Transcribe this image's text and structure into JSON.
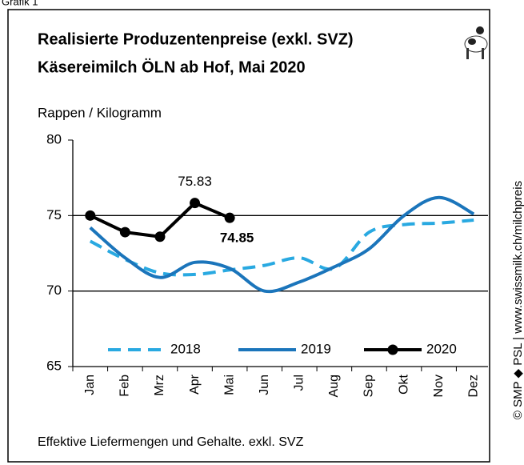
{
  "chart_data": {
    "type": "line",
    "header_label": "Grafik 1",
    "title": "Realisierte Produzentenpreise (exkl. SVZ)",
    "subtitle": "Käsereimilch ÖLN ab Hof, Mai 2020",
    "y_label": "Rappen / Kilogramm",
    "footnote": "Effektive Liefermengen und Gehalte. exkl. SVZ",
    "source": "© SMP ◆ PSL | www.swissmilk.ch/milchpreis",
    "categories": [
      "Jan",
      "Feb",
      "Mrz",
      "Apr",
      "Mai",
      "Jun",
      "Jul",
      "Aug",
      "Sep",
      "Okt",
      "Nov",
      "Dez"
    ],
    "ylim": [
      65,
      80
    ],
    "yticks": [
      65,
      70,
      75,
      80
    ],
    "grid_values": [
      70,
      75
    ],
    "legend": "bottom",
    "series": [
      {
        "name": "2018",
        "color": "#29a9e1",
        "style": "dashed",
        "values": [
          73.3,
          72.1,
          71.2,
          71.1,
          71.4,
          71.7,
          72.2,
          71.5,
          73.9,
          74.4,
          74.5,
          74.7
        ]
      },
      {
        "name": "2019",
        "color": "#1b75bb",
        "style": "solid",
        "values": [
          74.2,
          72.2,
          70.9,
          71.9,
          71.5,
          70.0,
          70.6,
          71.6,
          72.8,
          75.0,
          76.2,
          75.1
        ]
      },
      {
        "name": "2020",
        "color": "#000000",
        "style": "markers",
        "values": [
          75.0,
          73.9,
          73.6,
          75.83,
          74.85,
          null,
          null,
          null,
          null,
          null,
          null,
          null
        ]
      }
    ]
  }
}
